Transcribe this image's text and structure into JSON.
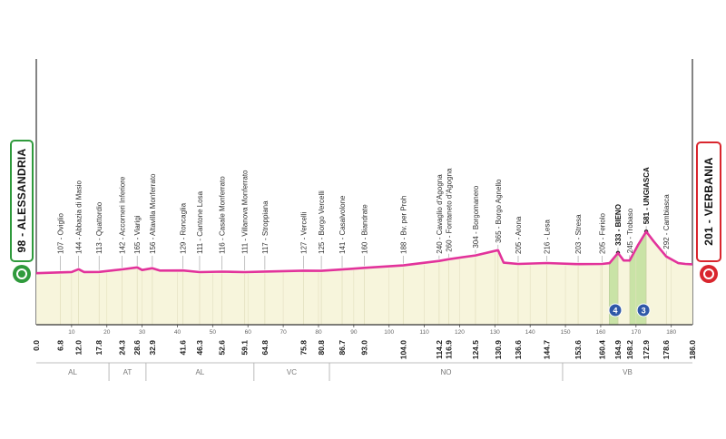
{
  "chart_data": {
    "type": "area",
    "start": {
      "label": "98 - ALESSANDRIA",
      "km": 0,
      "km_label": "0.0",
      "color": "#2f9a3c"
    },
    "finish": {
      "label": "201 - VERBANIA",
      "km": 186,
      "km_label": "186.0",
      "color": "#d9262e"
    },
    "x": [
      0,
      6.8,
      10,
      12,
      13.5,
      17.8,
      24.3,
      28.6,
      30,
      32.9,
      35,
      41.6,
      46.3,
      52.6,
      59.1,
      64.8,
      75.8,
      80.8,
      86.7,
      93,
      104,
      114.2,
      116.9,
      124.5,
      130.9,
      132.5,
      136.6,
      144.7,
      153.6,
      160.4,
      162.5,
      164.9,
      166.5,
      168.2,
      170.5,
      172.9,
      175,
      178.6,
      182,
      184,
      186
    ],
    "values": [
      98,
      107,
      112,
      144,
      112,
      113,
      142,
      165,
      135,
      156,
      128,
      129,
      111,
      116,
      111,
      117,
      127,
      125,
      141,
      160,
      188,
      240,
      260,
      304,
      365,
      220,
      205,
      216,
      203,
      205,
      215,
      333,
      245,
      245,
      420,
      581,
      470,
      292,
      215,
      205,
      201
    ],
    "color": "#e2339b",
    "fill": "#f7f5dc",
    "xlim": [
      0,
      186
    ],
    "ylim": [
      -500,
      700
    ],
    "xticks": [
      10,
      20,
      30,
      40,
      50,
      60,
      70,
      80,
      90,
      100,
      110,
      120,
      130,
      140,
      150,
      160,
      170,
      180
    ],
    "waypoints": [
      {
        "km": 6.8,
        "km_label": "6.8",
        "alt": 107,
        "label": "107 - Oviglio"
      },
      {
        "km": 12,
        "km_label": "12.0",
        "alt": 144,
        "label": "144 - Abbazia di Masio"
      },
      {
        "km": 17.8,
        "km_label": "17.8",
        "alt": 113,
        "label": "113 - Quattordio"
      },
      {
        "km": 24.3,
        "km_label": "24.3",
        "alt": 142,
        "label": "142 - Accorneri Inferiore"
      },
      {
        "km": 28.6,
        "km_label": "28.6",
        "alt": 165,
        "label": "165 - Viarigi"
      },
      {
        "km": 32.9,
        "km_label": "32.9",
        "alt": 156,
        "label": "156 - Altavilla Monferrato"
      },
      {
        "km": 41.6,
        "km_label": "41.6",
        "alt": 129,
        "label": "129 - Roncaglia"
      },
      {
        "km": 46.3,
        "km_label": "46.3",
        "alt": 111,
        "label": "111 - Cantone Losa"
      },
      {
        "km": 52.6,
        "km_label": "52.6",
        "alt": 116,
        "label": "116 - Casale Monferrato"
      },
      {
        "km": 59.1,
        "km_label": "59.1",
        "alt": 111,
        "label": "111 - Villanova Monferrato"
      },
      {
        "km": 64.8,
        "km_label": "64.8",
        "alt": 117,
        "label": "117 - Stroppiana"
      },
      {
        "km": 75.8,
        "km_label": "75.8",
        "alt": 127,
        "label": "127 - Vercelli"
      },
      {
        "km": 80.8,
        "km_label": "80.8",
        "alt": 125,
        "label": "125 - Borgo Vercelli"
      },
      {
        "km": 86.7,
        "km_label": "86.7",
        "alt": 141,
        "label": "141 - Casalvolone"
      },
      {
        "km": 93,
        "km_label": "93.0",
        "alt": 160,
        "label": "160 - Biandrate"
      },
      {
        "km": 104,
        "km_label": "104.0",
        "alt": 188,
        "label": "188 - Bv. per Proh"
      },
      {
        "km": 114.2,
        "km_label": "114.2",
        "alt": 240,
        "label": "240 - Cavaglio d'Agogna"
      },
      {
        "km": 116.9,
        "km_label": "116.9",
        "alt": 260,
        "label": "260 - Fontaneto d'Agogna"
      },
      {
        "km": 124.5,
        "km_label": "124.5",
        "alt": 304,
        "label": "304 - Borgomanero"
      },
      {
        "km": 130.9,
        "km_label": "130.9",
        "alt": 365,
        "label": "365 - Borgo Agnello"
      },
      {
        "km": 136.6,
        "km_label": "136.6",
        "alt": 205,
        "label": "205 - Arona"
      },
      {
        "km": 144.7,
        "km_label": "144.7",
        "alt": 216,
        "label": "216 - Lesa"
      },
      {
        "km": 153.6,
        "km_label": "153.6",
        "alt": 203,
        "label": "203 - Stresa"
      },
      {
        "km": 160.4,
        "km_label": "160.4",
        "alt": 205,
        "label": "205 - Feriolo"
      },
      {
        "km": 164.9,
        "km_label": "164.9",
        "alt": 333,
        "label": "333 - BIENO",
        "summit": true
      },
      {
        "km": 168.2,
        "km_label": "168.2",
        "alt": 245,
        "label": "245 - Trobaso"
      },
      {
        "km": 172.9,
        "km_label": "172.9",
        "alt": 581,
        "label": "581 - UNGIASCA",
        "summit": true
      },
      {
        "km": 178.6,
        "km_label": "178.6",
        "alt": 292,
        "label": "292 - Cambiasca"
      }
    ],
    "climbs": [
      {
        "from": 162.5,
        "to": 164.9,
        "category": "4",
        "color": "#c9e3a6"
      },
      {
        "from": 168.2,
        "to": 172.9,
        "category": "3",
        "color": "#c9e3a6"
      }
    ],
    "climb_marker_color": "#2f58a8",
    "regions": [
      {
        "name": "AL",
        "from": 0,
        "to": 20.6
      },
      {
        "name": "AT",
        "from": 20.6,
        "to": 31.1
      },
      {
        "name": "AL",
        "from": 31.1,
        "to": 61.7
      },
      {
        "name": "VC",
        "from": 61.7,
        "to": 83.1
      },
      {
        "name": "NO",
        "from": 83.1,
        "to": 149.2
      },
      {
        "name": "VB",
        "from": 149.2,
        "to": 186
      }
    ]
  }
}
